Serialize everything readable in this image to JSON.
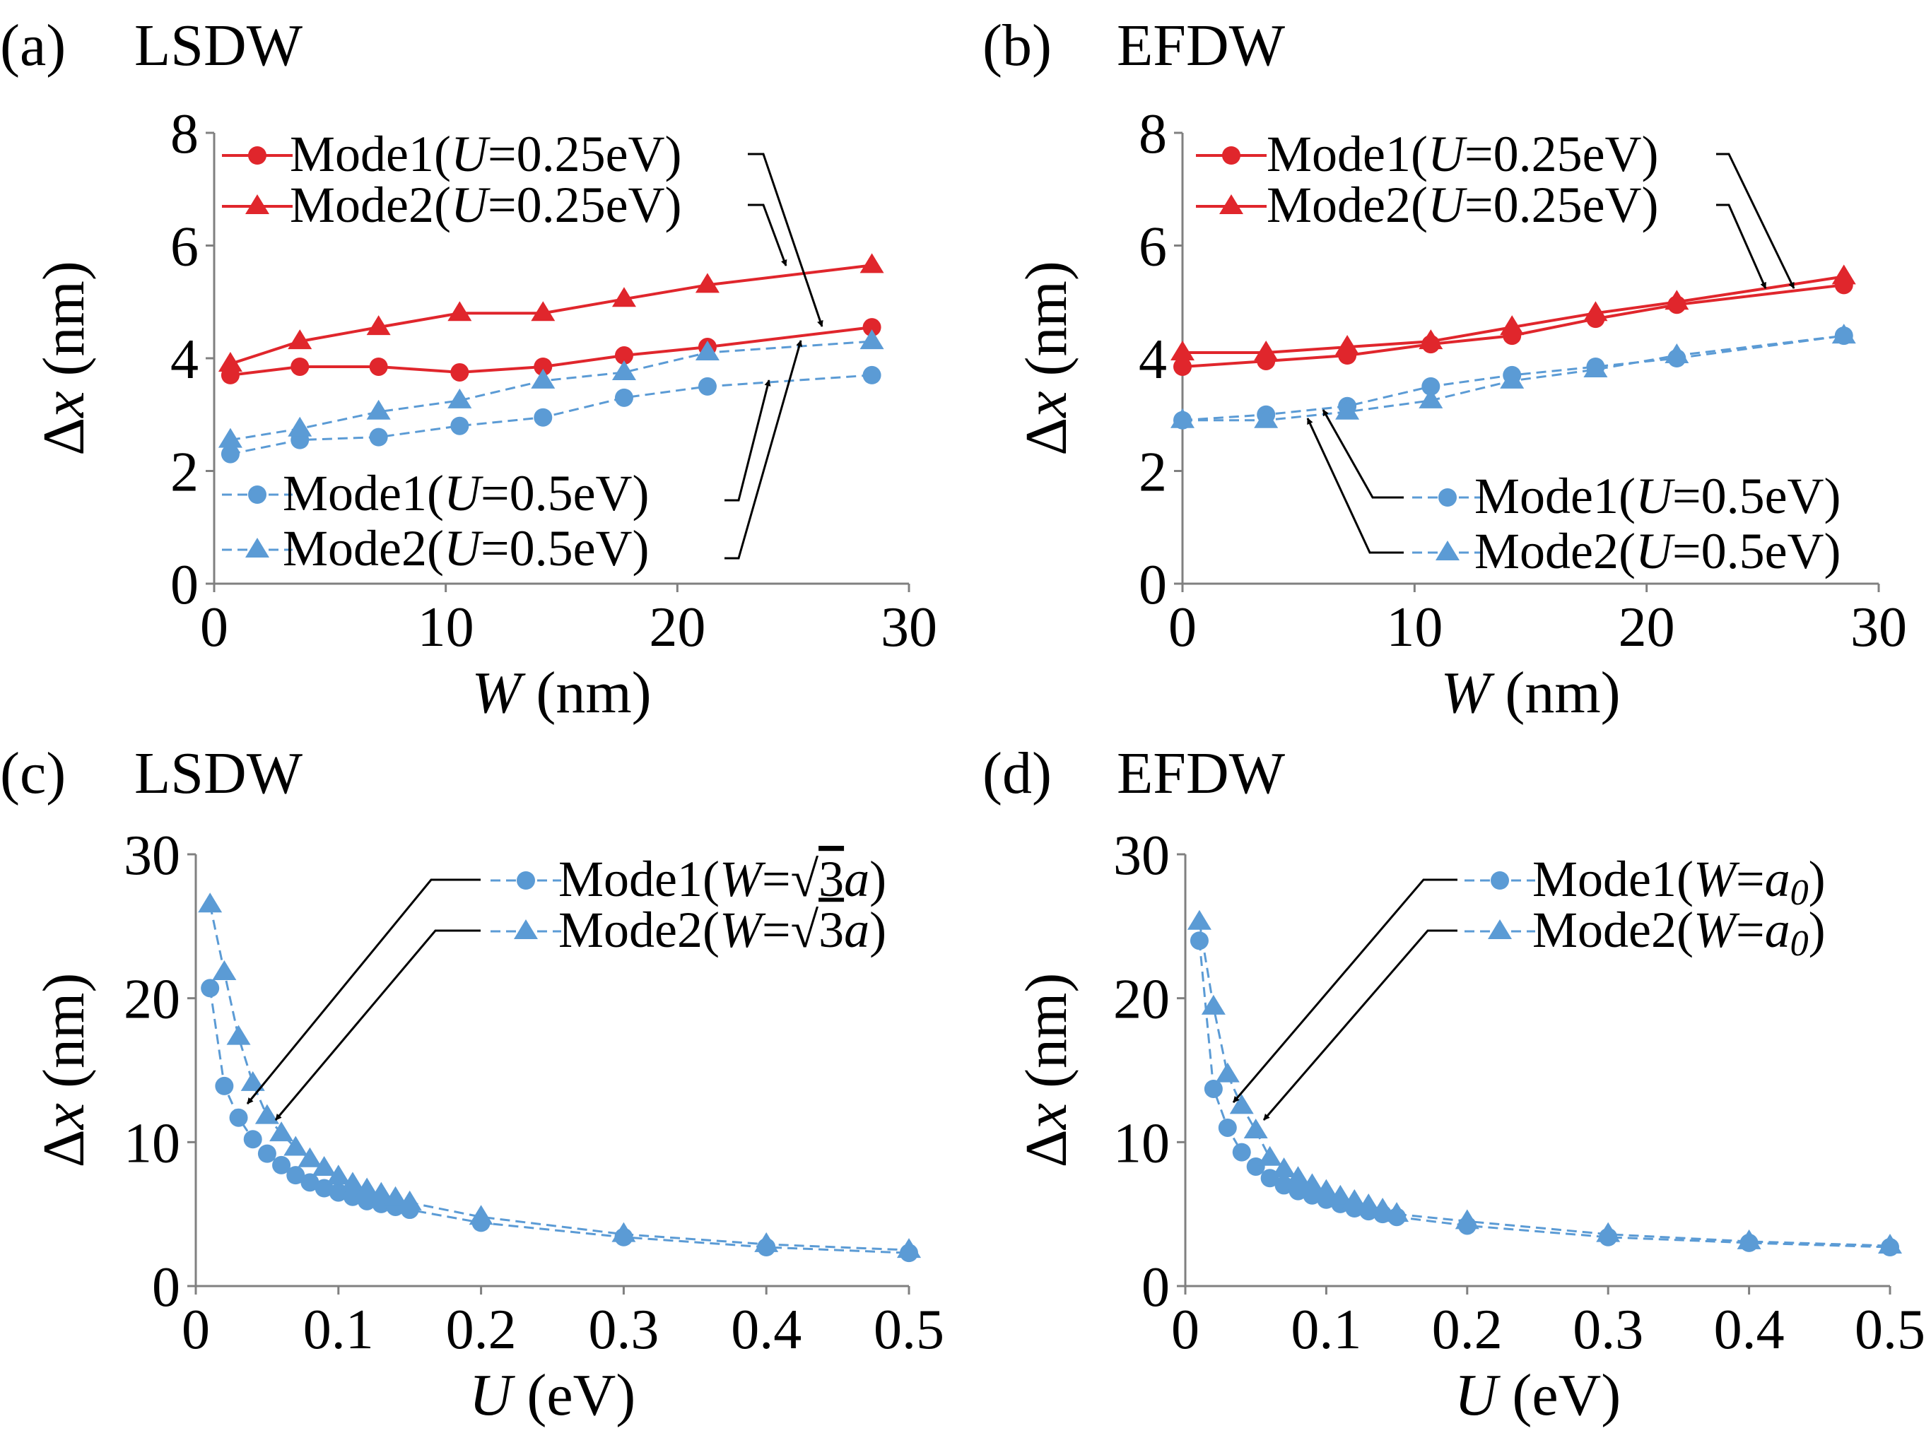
{
  "colors": {
    "red": "#e0262c",
    "blue": "#5b9bd5",
    "axis": "#808080",
    "arrow": "#000000"
  },
  "chart_data": [
    {
      "type": "line",
      "panel_label": "(a)",
      "title": "LSDW",
      "xlabel_var": "W",
      "xlabel_unit": " (nm)",
      "ylabel_var": "x",
      "ylabel_unit": " (nm)",
      "xlim": [
        0,
        30
      ],
      "ylim": [
        0,
        8
      ],
      "xticks": [
        0,
        10,
        20,
        30
      ],
      "xtick_labels": [
        "0",
        "10",
        "20",
        "30"
      ],
      "yticks": [
        0,
        2,
        4,
        6,
        8
      ],
      "ytick_labels": [
        "0",
        "2",
        "4",
        "6",
        "8"
      ],
      "series": [
        {
          "name": "Mode1(U=0.25eV)",
          "mode": "Mode1",
          "param": "U",
          "value": "0.25eV",
          "color": "#e0262c",
          "marker": "circle",
          "dashed": false,
          "x": [
            0.7,
            3.7,
            7.1,
            10.6,
            14.2,
            17.7,
            21.3,
            28.4
          ],
          "y": [
            3.7,
            3.85,
            3.85,
            3.75,
            3.85,
            4.05,
            4.2,
            4.55
          ]
        },
        {
          "name": "Mode2(U=0.25eV)",
          "mode": "Mode2",
          "param": "U",
          "value": "0.25eV",
          "color": "#e0262c",
          "marker": "triangle",
          "dashed": false,
          "x": [
            0.7,
            3.7,
            7.1,
            10.6,
            14.2,
            17.7,
            21.3,
            28.4
          ],
          "y": [
            3.9,
            4.3,
            4.55,
            4.8,
            4.8,
            5.05,
            5.3,
            5.65
          ]
        },
        {
          "name": "Mode1(U=0.5eV)",
          "mode": "Mode1",
          "param": "U",
          "value": "0.5eV",
          "color": "#5b9bd5",
          "marker": "circle",
          "dashed": true,
          "x": [
            0.7,
            3.7,
            7.1,
            10.6,
            14.2,
            17.7,
            21.3,
            28.4
          ],
          "y": [
            2.3,
            2.55,
            2.6,
            2.8,
            2.95,
            3.3,
            3.5,
            3.7
          ]
        },
        {
          "name": "Mode2(U=0.5eV)",
          "mode": "Mode2",
          "param": "U",
          "value": "0.5eV",
          "color": "#5b9bd5",
          "marker": "triangle",
          "dashed": true,
          "x": [
            0.7,
            3.7,
            7.1,
            10.6,
            14.2,
            17.7,
            21.3,
            28.4
          ],
          "y": [
            2.55,
            2.75,
            3.05,
            3.25,
            3.6,
            3.75,
            4.1,
            4.3
          ]
        }
      ]
    },
    {
      "type": "line",
      "panel_label": "(b)",
      "title": "EFDW",
      "xlabel_var": "W",
      "xlabel_unit": " (nm)",
      "ylabel_var": "x",
      "ylabel_unit": " (nm)",
      "xlim": [
        0,
        30
      ],
      "ylim": [
        0,
        8
      ],
      "xticks": [
        0,
        10,
        20,
        30
      ],
      "xtick_labels": [
        "0",
        "10",
        "20",
        "30"
      ],
      "yticks": [
        0,
        2,
        4,
        6,
        8
      ],
      "ytick_labels": [
        "0",
        "2",
        "4",
        "6",
        "8"
      ],
      "series": [
        {
          "name": "Mode1(U=0.25eV)",
          "mode": "Mode1",
          "param": "U",
          "value": "0.25eV",
          "color": "#e0262c",
          "marker": "circle",
          "dashed": false,
          "x": [
            0,
            3.6,
            7.1,
            10.7,
            14.2,
            17.8,
            21.3,
            28.5
          ],
          "y": [
            3.85,
            3.95,
            4.05,
            4.25,
            4.4,
            4.7,
            4.95,
            5.3
          ]
        },
        {
          "name": "Mode2(U=0.25eV)",
          "mode": "Mode2",
          "param": "U",
          "value": "0.25eV",
          "color": "#e0262c",
          "marker": "triangle",
          "dashed": false,
          "x": [
            0,
            3.6,
            7.1,
            10.7,
            14.2,
            17.8,
            21.3,
            28.5
          ],
          "y": [
            4.1,
            4.1,
            4.2,
            4.3,
            4.55,
            4.8,
            5.0,
            5.45
          ]
        },
        {
          "name": "Mode1(U=0.5eV)",
          "mode": "Mode1",
          "param": "U",
          "value": "0.5eV",
          "color": "#5b9bd5",
          "marker": "circle",
          "dashed": true,
          "x": [
            0,
            3.6,
            7.1,
            10.7,
            14.2,
            17.8,
            21.3,
            28.5
          ],
          "y": [
            2.9,
            3.0,
            3.15,
            3.5,
            3.7,
            3.85,
            4.0,
            4.4
          ]
        },
        {
          "name": "Mode2(U=0.5eV)",
          "mode": "Mode2",
          "param": "U",
          "value": "0.5eV",
          "color": "#5b9bd5",
          "marker": "triangle",
          "dashed": true,
          "x": [
            0,
            3.6,
            7.1,
            10.7,
            14.2,
            17.8,
            21.3,
            28.5
          ],
          "y": [
            2.9,
            2.9,
            3.05,
            3.25,
            3.6,
            3.8,
            4.05,
            4.4
          ]
        }
      ]
    },
    {
      "type": "line",
      "panel_label": "(c)",
      "title": "LSDW",
      "xlabel_var": "U",
      "xlabel_unit": " (eV)",
      "ylabel_var": "x",
      "ylabel_unit": " (nm)",
      "xlim": [
        0,
        0.5
      ],
      "ylim": [
        0,
        30
      ],
      "xticks": [
        0,
        0.1,
        0.2,
        0.3,
        0.4,
        0.5
      ],
      "xtick_labels": [
        "0",
        "0.1",
        "0.2",
        "0.3",
        "0.4",
        "0.5"
      ],
      "yticks": [
        0,
        10,
        20,
        30
      ],
      "ytick_labels": [
        "0",
        "10",
        "20",
        "30"
      ],
      "series": [
        {
          "name": "Mode1(W=√3a)",
          "mode": "Mode1",
          "param": "W",
          "radical": "3",
          "value": "a",
          "color": "#5b9bd5",
          "marker": "circle",
          "dashed": true,
          "x": [
            0.01,
            0.02,
            0.03,
            0.04,
            0.05,
            0.06,
            0.07,
            0.08,
            0.09,
            0.1,
            0.11,
            0.12,
            0.13,
            0.14,
            0.15,
            0.2,
            0.3,
            0.4,
            0.5
          ],
          "y": [
            20.7,
            13.9,
            11.7,
            10.2,
            9.2,
            8.4,
            7.7,
            7.2,
            6.8,
            6.5,
            6.2,
            5.9,
            5.7,
            5.5,
            5.3,
            4.4,
            3.4,
            2.7,
            2.3
          ]
        },
        {
          "name": "Mode2(W=√3a)",
          "mode": "Mode2",
          "param": "W",
          "radical": "3",
          "value": "a",
          "color": "#5b9bd5",
          "marker": "triangle",
          "dashed": true,
          "x": [
            0.01,
            0.02,
            0.03,
            0.04,
            0.05,
            0.06,
            0.07,
            0.08,
            0.09,
            0.1,
            0.11,
            0.12,
            0.13,
            0.14,
            0.15,
            0.2,
            0.3,
            0.4,
            0.5
          ],
          "y": [
            26.5,
            21.8,
            17.3,
            14.1,
            11.8,
            10.6,
            9.6,
            8.8,
            8.2,
            7.6,
            7.1,
            6.7,
            6.4,
            6.1,
            5.8,
            4.8,
            3.6,
            2.9,
            2.5
          ]
        }
      ]
    },
    {
      "type": "line",
      "panel_label": "(d)",
      "title": "EFDW",
      "xlabel_var": "U",
      "xlabel_unit": " (eV)",
      "ylabel_var": "x",
      "ylabel_unit": " (nm)",
      "xlim": [
        0,
        0.5
      ],
      "ylim": [
        0,
        30
      ],
      "xticks": [
        0,
        0.1,
        0.2,
        0.3,
        0.4,
        0.5
      ],
      "xtick_labels": [
        "0",
        "0.1",
        "0.2",
        "0.3",
        "0.4",
        "0.5"
      ],
      "yticks": [
        0,
        10,
        20,
        30
      ],
      "ytick_labels": [
        "0",
        "10",
        "20",
        "30"
      ],
      "series": [
        {
          "name": "Mode1(W=a0)",
          "mode": "Mode1",
          "param": "W",
          "value": "a",
          "subscript": "0",
          "color": "#5b9bd5",
          "marker": "circle",
          "dashed": true,
          "x": [
            0.01,
            0.02,
            0.03,
            0.04,
            0.05,
            0.06,
            0.07,
            0.08,
            0.09,
            0.1,
            0.11,
            0.12,
            0.13,
            0.14,
            0.15,
            0.2,
            0.3,
            0.4,
            0.5
          ],
          "y": [
            24.0,
            13.7,
            11.0,
            9.3,
            8.3,
            7.5,
            7.0,
            6.6,
            6.3,
            6.0,
            5.7,
            5.4,
            5.2,
            5.0,
            4.8,
            4.2,
            3.4,
            3.0,
            2.7
          ]
        },
        {
          "name": "Mode2(W=a0)",
          "mode": "Mode2",
          "param": "W",
          "value": "a",
          "subscript": "0",
          "color": "#5b9bd5",
          "marker": "triangle",
          "dashed": true,
          "x": [
            0.01,
            0.02,
            0.03,
            0.04,
            0.05,
            0.06,
            0.07,
            0.08,
            0.09,
            0.1,
            0.11,
            0.12,
            0.13,
            0.14,
            0.15,
            0.2,
            0.3,
            0.4,
            0.5
          ],
          "y": [
            25.3,
            19.4,
            14.7,
            12.5,
            10.8,
            8.9,
            8.1,
            7.5,
            7.0,
            6.6,
            6.2,
            5.9,
            5.6,
            5.3,
            5.0,
            4.5,
            3.6,
            3.1,
            2.8
          ]
        }
      ]
    }
  ]
}
